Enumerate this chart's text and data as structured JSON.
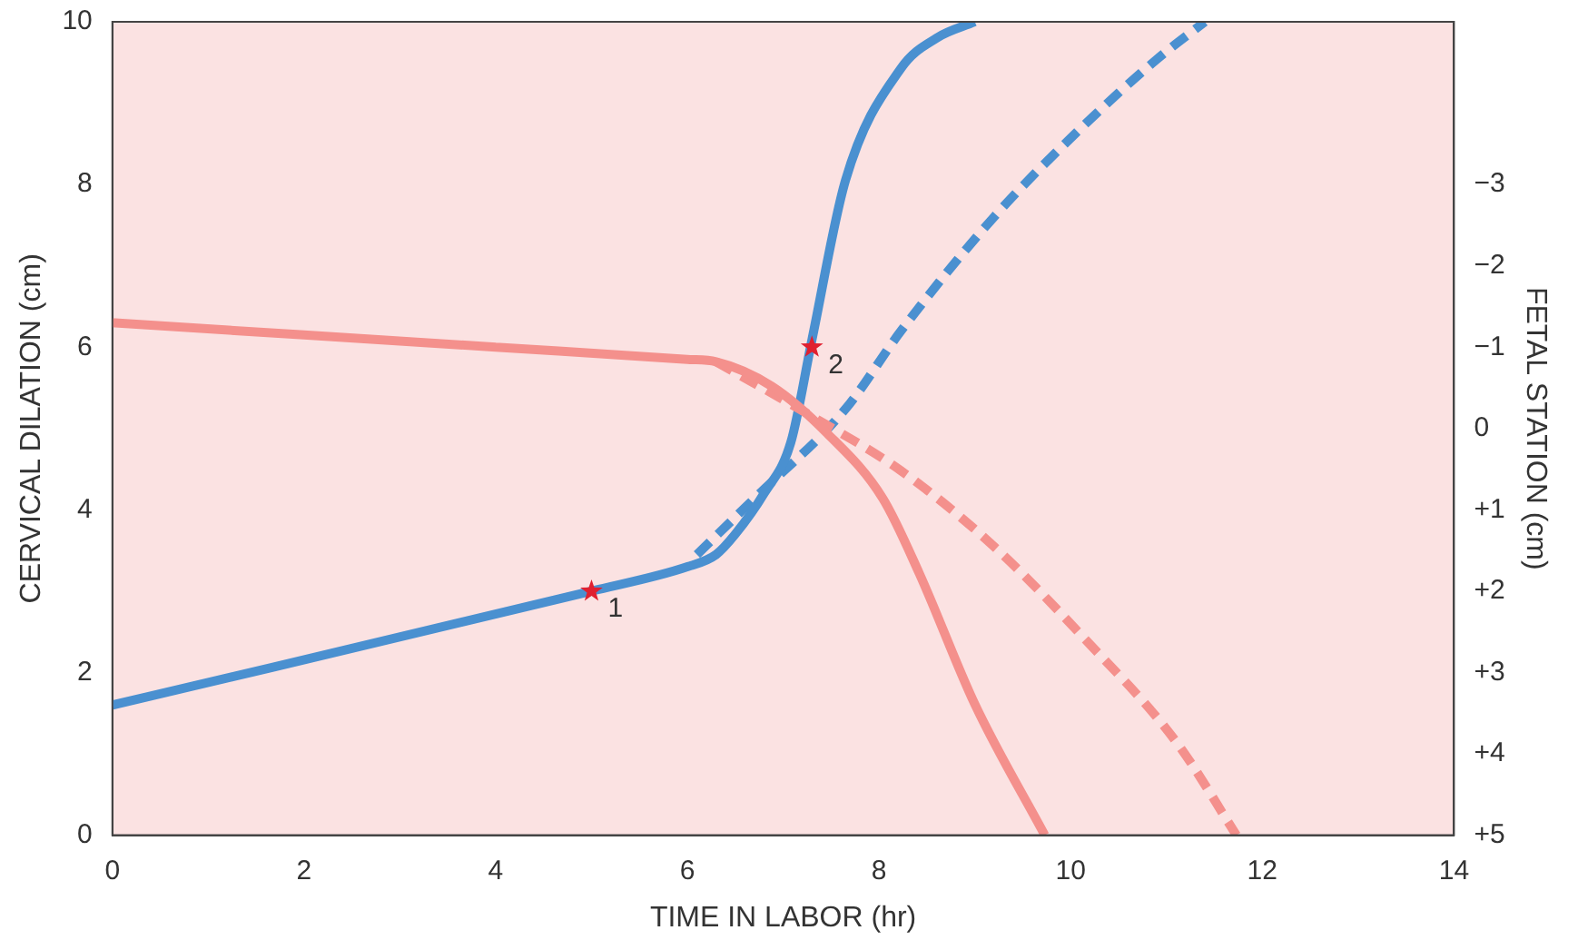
{
  "chart_data": {
    "type": "line",
    "xlabel": "TIME IN LABOR (hr)",
    "ylabel": "CERVICAL DILATION (cm)",
    "y2label": "FETAL STATION (cm)",
    "xlim": [
      0,
      14
    ],
    "xticks": [
      0,
      2,
      4,
      6,
      8,
      10,
      12,
      14
    ],
    "ylim": [
      0,
      10
    ],
    "yticks": [
      0,
      2,
      4,
      6,
      8,
      10
    ],
    "y2lim": [
      5,
      -5
    ],
    "y2ticks": [
      {
        "value": -3,
        "label": "−3"
      },
      {
        "value": -2,
        "label": "−2"
      },
      {
        "value": -1,
        "label": "−1"
      },
      0,
      {
        "value": 1,
        "label": "+1"
      },
      {
        "value": 2,
        "label": "+2"
      },
      {
        "value": 3,
        "label": "+3"
      },
      {
        "value": 4,
        "label": "+4"
      },
      {
        "value": 5,
        "label": "+5"
      }
    ],
    "grid": false,
    "legend": false,
    "marker": "none",
    "series": [
      {
        "color": "#f4908c",
        "axis": "y2",
        "line_style": "solid",
        "x": [
          0,
          2,
          4,
          6,
          6.3,
          6.88,
          7.46,
          8.04,
          8.42,
          9,
          9.73
        ],
        "values": [
          -1.3,
          -1.15,
          -1.0,
          -0.85,
          -0.82,
          -0.52,
          0.06,
          0.86,
          1.78,
          3.39,
          5
        ]
      },
      {
        "color": "#f4908c",
        "axis": "y2",
        "line_style": "dashed",
        "x": [
          6.3,
          7.27,
          8.23,
          9.19,
          10.15,
          11.1,
          11.73
        ],
        "values": [
          -0.82,
          -0.17,
          0.52,
          1.44,
          2.59,
          3.85,
          5
        ]
      },
      {
        "color": "#4a90d0",
        "line_style": "solid",
        "x": [
          0,
          5,
          6,
          6.3,
          6.5,
          6.8,
          7.08,
          7.3,
          7.65,
          8.23,
          8.6,
          9
        ],
        "values": [
          1.6,
          3,
          3.3,
          3.45,
          3.7,
          4.2,
          4.83,
          6.09,
          8.05,
          9.43,
          9.8,
          10
        ]
      },
      {
        "color": "#4a90d0",
        "line_style": "dashed",
        "x": [
          6.1,
          6.7,
          7.65,
          8.23,
          9.2,
          10.15,
          10.9,
          11.4
        ],
        "values": [
          3.45,
          4.14,
          5.24,
          6.2,
          7.6,
          8.74,
          9.54,
          10
        ]
      },
      {
        "type": "scatter",
        "color": "#e02030",
        "marker": "star",
        "x": [
          5,
          7.3
        ],
        "values": [
          3,
          6
        ]
      }
    ],
    "annotations": [
      {
        "text": "1",
        "x": 5,
        "y": 3
      },
      {
        "text": "2",
        "x": 7.3,
        "y": 6
      }
    ]
  }
}
